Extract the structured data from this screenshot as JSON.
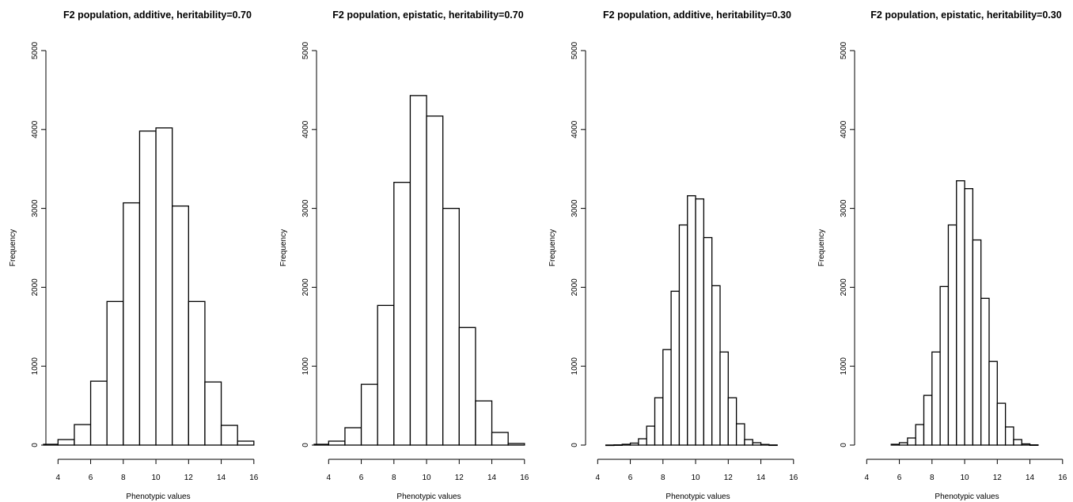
{
  "chart_data": [
    {
      "type": "bar",
      "title": "F2 population, additive, heritability=0.70",
      "xlabel": "Phenotypic values",
      "ylabel": "Frequency",
      "xlim": [
        3.5,
        16.3
      ],
      "ylim": [
        0,
        5000
      ],
      "xticks": [
        "4",
        "6",
        "8",
        "10",
        "12",
        "14",
        "16"
      ],
      "yticks": [
        "0",
        "1000",
        "2000",
        "3000",
        "4000",
        "5000"
      ],
      "bin_width": 1,
      "bin_starts": [
        3,
        4,
        5,
        6,
        7,
        8,
        9,
        10,
        11,
        12,
        13,
        14,
        15
      ],
      "values": [
        10,
        70,
        260,
        810,
        1820,
        3070,
        3980,
        4020,
        3030,
        1820,
        800,
        250,
        50
      ]
    },
    {
      "type": "bar",
      "title": "F2 population, epistatic, heritability=0.70",
      "xlabel": "Phenotypic values",
      "ylabel": "Frequency",
      "xlim": [
        3.5,
        16.3
      ],
      "ylim": [
        0,
        5000
      ],
      "xticks": [
        "4",
        "6",
        "8",
        "10",
        "12",
        "14",
        "16"
      ],
      "yticks": [
        "0",
        "1000",
        "2000",
        "3000",
        "4000",
        "5000"
      ],
      "bin_width": 1,
      "bin_starts": [
        3,
        4,
        5,
        6,
        7,
        8,
        9,
        10,
        11,
        12,
        13,
        14,
        15
      ],
      "values": [
        10,
        50,
        220,
        770,
        1770,
        3330,
        4430,
        4170,
        3000,
        1490,
        560,
        160,
        20
      ]
    },
    {
      "type": "bar",
      "title": "F2 population, additive, heritability=0.30",
      "xlabel": "Phenotypic values",
      "ylabel": "Frequency",
      "xlim": [
        3.5,
        16.3
      ],
      "ylim": [
        0,
        5000
      ],
      "xticks": [
        "4",
        "6",
        "8",
        "10",
        "12",
        "14",
        "16"
      ],
      "yticks": [
        "0",
        "1000",
        "2000",
        "3000",
        "4000",
        "5000"
      ],
      "bin_width": 0.5,
      "bin_starts": [
        4.5,
        5,
        5.5,
        6,
        6.5,
        7,
        7.5,
        8,
        8.5,
        9,
        9.5,
        10,
        10.5,
        11,
        11.5,
        12,
        12.5,
        13,
        13.5,
        14,
        14.5
      ],
      "values": [
        1,
        3,
        10,
        25,
        80,
        240,
        600,
        1210,
        1950,
        2790,
        3160,
        3120,
        2630,
        2020,
        1180,
        600,
        270,
        70,
        30,
        8,
        2
      ]
    },
    {
      "type": "bar",
      "title": "F2 population, epistatic, heritability=0.30",
      "xlabel": "Phenotypic values",
      "ylabel": "Frequency",
      "xlim": [
        3.5,
        16.3
      ],
      "ylim": [
        0,
        5000
      ],
      "xticks": [
        "4",
        "6",
        "8",
        "10",
        "12",
        "14",
        "16"
      ],
      "yticks": [
        "0",
        "1000",
        "2000",
        "3000",
        "4000",
        "5000"
      ],
      "bin_width": 0.5,
      "bin_starts": [
        5.5,
        6,
        6.5,
        7,
        7.5,
        8,
        8.5,
        9,
        9.5,
        10,
        10.5,
        11,
        11.5,
        12,
        12.5,
        13,
        13.5,
        14
      ],
      "values": [
        10,
        30,
        90,
        260,
        630,
        1180,
        2010,
        2790,
        3350,
        3250,
        2600,
        1860,
        1060,
        530,
        230,
        70,
        15,
        3
      ]
    }
  ]
}
